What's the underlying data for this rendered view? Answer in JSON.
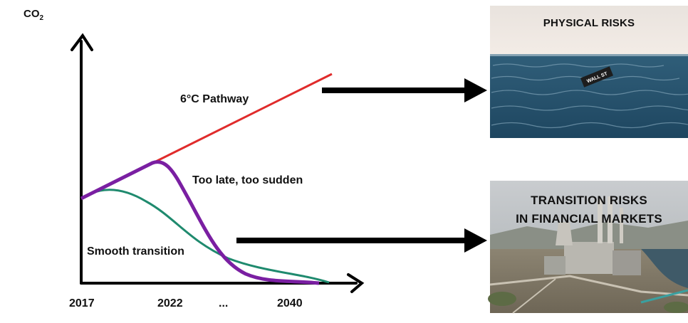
{
  "chart": {
    "y_axis_label": "CO",
    "y_axis_subscript": "2",
    "x_ticks": [
      "2017",
      "2022",
      "...",
      "2040"
    ],
    "curves": {
      "pathway_6c": {
        "label": "6°C Pathway",
        "color": "#e02b2b"
      },
      "too_late": {
        "label": "Too late, too sudden",
        "color": "#7a1fa2"
      },
      "smooth": {
        "label": "Smooth transition",
        "color": "#1f8a6e"
      }
    }
  },
  "panels": {
    "physical": {
      "title": "PHYSICAL RISKS",
      "sign_text": "WALL ST"
    },
    "transition": {
      "title_line1": "TRANSITION RISKS",
      "title_line2": "IN FINANCIAL MARKETS"
    }
  }
}
